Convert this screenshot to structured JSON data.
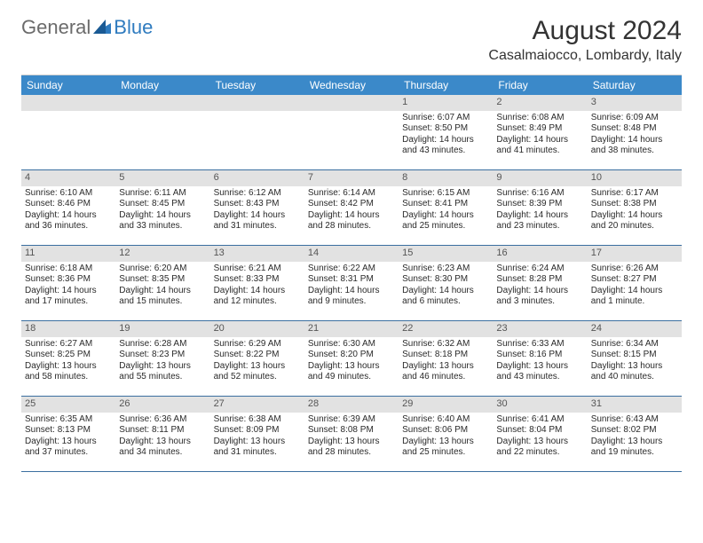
{
  "logo": {
    "general": "General",
    "blue": "Blue"
  },
  "title": "August 2024",
  "location": "Casalmaiocco, Lombardy, Italy",
  "colors": {
    "header_bg": "#3b89c9",
    "header_text": "#ffffff",
    "daynum_bg": "#e2e2e2",
    "week_border": "#3b6fa0",
    "text": "#2a2a2a"
  },
  "daysOfWeek": [
    "Sunday",
    "Monday",
    "Tuesday",
    "Wednesday",
    "Thursday",
    "Friday",
    "Saturday"
  ],
  "weeks": [
    [
      {
        "n": "",
        "sr": "",
        "ss": "",
        "dl": ""
      },
      {
        "n": "",
        "sr": "",
        "ss": "",
        "dl": ""
      },
      {
        "n": "",
        "sr": "",
        "ss": "",
        "dl": ""
      },
      {
        "n": "",
        "sr": "",
        "ss": "",
        "dl": ""
      },
      {
        "n": "1",
        "sr": "Sunrise: 6:07 AM",
        "ss": "Sunset: 8:50 PM",
        "dl": "Daylight: 14 hours and 43 minutes."
      },
      {
        "n": "2",
        "sr": "Sunrise: 6:08 AM",
        "ss": "Sunset: 8:49 PM",
        "dl": "Daylight: 14 hours and 41 minutes."
      },
      {
        "n": "3",
        "sr": "Sunrise: 6:09 AM",
        "ss": "Sunset: 8:48 PM",
        "dl": "Daylight: 14 hours and 38 minutes."
      }
    ],
    [
      {
        "n": "4",
        "sr": "Sunrise: 6:10 AM",
        "ss": "Sunset: 8:46 PM",
        "dl": "Daylight: 14 hours and 36 minutes."
      },
      {
        "n": "5",
        "sr": "Sunrise: 6:11 AM",
        "ss": "Sunset: 8:45 PM",
        "dl": "Daylight: 14 hours and 33 minutes."
      },
      {
        "n": "6",
        "sr": "Sunrise: 6:12 AM",
        "ss": "Sunset: 8:43 PM",
        "dl": "Daylight: 14 hours and 31 minutes."
      },
      {
        "n": "7",
        "sr": "Sunrise: 6:14 AM",
        "ss": "Sunset: 8:42 PM",
        "dl": "Daylight: 14 hours and 28 minutes."
      },
      {
        "n": "8",
        "sr": "Sunrise: 6:15 AM",
        "ss": "Sunset: 8:41 PM",
        "dl": "Daylight: 14 hours and 25 minutes."
      },
      {
        "n": "9",
        "sr": "Sunrise: 6:16 AM",
        "ss": "Sunset: 8:39 PM",
        "dl": "Daylight: 14 hours and 23 minutes."
      },
      {
        "n": "10",
        "sr": "Sunrise: 6:17 AM",
        "ss": "Sunset: 8:38 PM",
        "dl": "Daylight: 14 hours and 20 minutes."
      }
    ],
    [
      {
        "n": "11",
        "sr": "Sunrise: 6:18 AM",
        "ss": "Sunset: 8:36 PM",
        "dl": "Daylight: 14 hours and 17 minutes."
      },
      {
        "n": "12",
        "sr": "Sunrise: 6:20 AM",
        "ss": "Sunset: 8:35 PM",
        "dl": "Daylight: 14 hours and 15 minutes."
      },
      {
        "n": "13",
        "sr": "Sunrise: 6:21 AM",
        "ss": "Sunset: 8:33 PM",
        "dl": "Daylight: 14 hours and 12 minutes."
      },
      {
        "n": "14",
        "sr": "Sunrise: 6:22 AM",
        "ss": "Sunset: 8:31 PM",
        "dl": "Daylight: 14 hours and 9 minutes."
      },
      {
        "n": "15",
        "sr": "Sunrise: 6:23 AM",
        "ss": "Sunset: 8:30 PM",
        "dl": "Daylight: 14 hours and 6 minutes."
      },
      {
        "n": "16",
        "sr": "Sunrise: 6:24 AM",
        "ss": "Sunset: 8:28 PM",
        "dl": "Daylight: 14 hours and 3 minutes."
      },
      {
        "n": "17",
        "sr": "Sunrise: 6:26 AM",
        "ss": "Sunset: 8:27 PM",
        "dl": "Daylight: 14 hours and 1 minute."
      }
    ],
    [
      {
        "n": "18",
        "sr": "Sunrise: 6:27 AM",
        "ss": "Sunset: 8:25 PM",
        "dl": "Daylight: 13 hours and 58 minutes."
      },
      {
        "n": "19",
        "sr": "Sunrise: 6:28 AM",
        "ss": "Sunset: 8:23 PM",
        "dl": "Daylight: 13 hours and 55 minutes."
      },
      {
        "n": "20",
        "sr": "Sunrise: 6:29 AM",
        "ss": "Sunset: 8:22 PM",
        "dl": "Daylight: 13 hours and 52 minutes."
      },
      {
        "n": "21",
        "sr": "Sunrise: 6:30 AM",
        "ss": "Sunset: 8:20 PM",
        "dl": "Daylight: 13 hours and 49 minutes."
      },
      {
        "n": "22",
        "sr": "Sunrise: 6:32 AM",
        "ss": "Sunset: 8:18 PM",
        "dl": "Daylight: 13 hours and 46 minutes."
      },
      {
        "n": "23",
        "sr": "Sunrise: 6:33 AM",
        "ss": "Sunset: 8:16 PM",
        "dl": "Daylight: 13 hours and 43 minutes."
      },
      {
        "n": "24",
        "sr": "Sunrise: 6:34 AM",
        "ss": "Sunset: 8:15 PM",
        "dl": "Daylight: 13 hours and 40 minutes."
      }
    ],
    [
      {
        "n": "25",
        "sr": "Sunrise: 6:35 AM",
        "ss": "Sunset: 8:13 PM",
        "dl": "Daylight: 13 hours and 37 minutes."
      },
      {
        "n": "26",
        "sr": "Sunrise: 6:36 AM",
        "ss": "Sunset: 8:11 PM",
        "dl": "Daylight: 13 hours and 34 minutes."
      },
      {
        "n": "27",
        "sr": "Sunrise: 6:38 AM",
        "ss": "Sunset: 8:09 PM",
        "dl": "Daylight: 13 hours and 31 minutes."
      },
      {
        "n": "28",
        "sr": "Sunrise: 6:39 AM",
        "ss": "Sunset: 8:08 PM",
        "dl": "Daylight: 13 hours and 28 minutes."
      },
      {
        "n": "29",
        "sr": "Sunrise: 6:40 AM",
        "ss": "Sunset: 8:06 PM",
        "dl": "Daylight: 13 hours and 25 minutes."
      },
      {
        "n": "30",
        "sr": "Sunrise: 6:41 AM",
        "ss": "Sunset: 8:04 PM",
        "dl": "Daylight: 13 hours and 22 minutes."
      },
      {
        "n": "31",
        "sr": "Sunrise: 6:43 AM",
        "ss": "Sunset: 8:02 PM",
        "dl": "Daylight: 13 hours and 19 minutes."
      }
    ]
  ]
}
